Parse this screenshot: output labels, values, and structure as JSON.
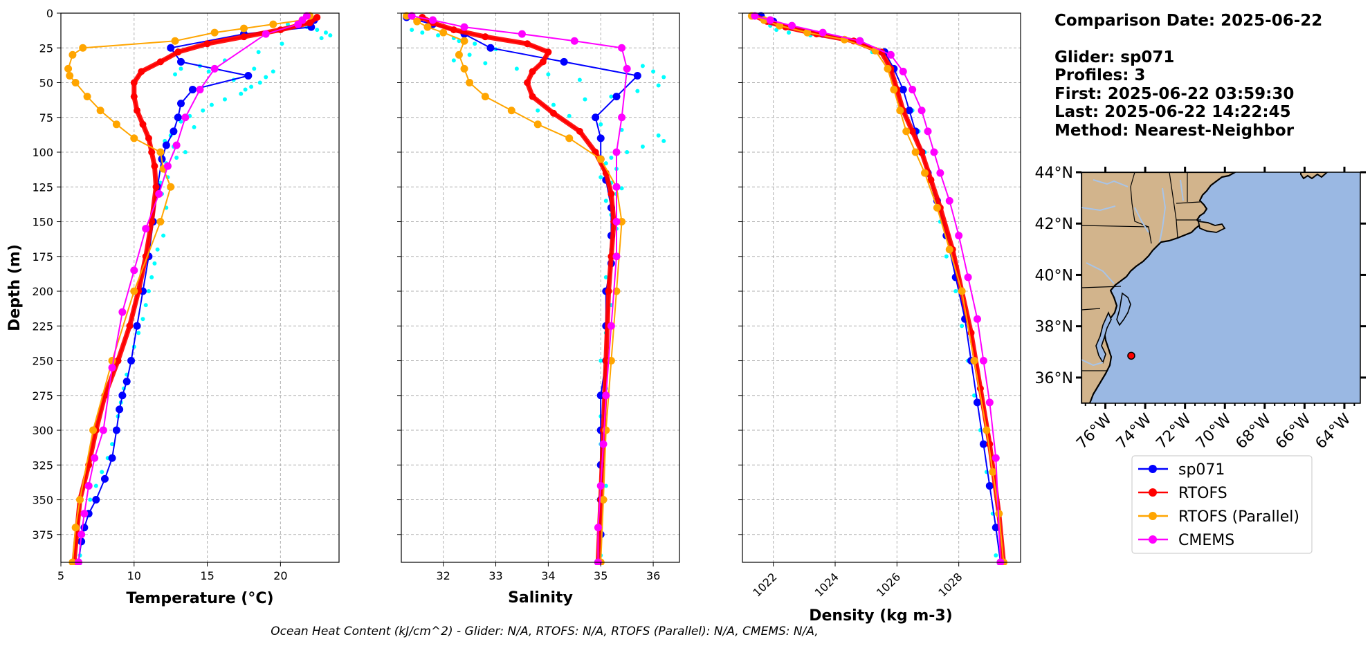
{
  "info": {
    "comparison_date": "Comparison Date: 2025-06-22",
    "glider": "Glider: sp071",
    "profiles": "Profiles: 3",
    "first": "First: 2025-06-22 03:59:30",
    "last": "Last: 2025-06-22 14:22:45",
    "method": "Method: Nearest-Neighbor"
  },
  "footer": "Ocean Heat Content (kJ/cm^2) - Glider: N/A,  RTOFS: N/A,  RTOFS (Parallel): N/A,  CMEMS: N/A,",
  "colors": {
    "glider_raw": "#00ffff",
    "sp071": "#0000ff",
    "RTOFS": "#ff0000",
    "RTOFS (Parallel)": "#ffa500",
    "CMEMS": "#ff00ff",
    "land": "#d2b48c",
    "ocean": "#9ab8e3",
    "rivers": "#a8c4e8"
  },
  "legend": {
    "placement": "below-map",
    "entries": [
      "sp071",
      "RTOFS",
      "RTOFS (Parallel)",
      "CMEMS"
    ]
  },
  "map": {
    "lon_range": [
      -77.2,
      -63.2
    ],
    "lat_range": [
      35.0,
      44.0
    ],
    "lon_ticks": [
      -76,
      -74,
      -72,
      -70,
      -68,
      -66,
      -64
    ],
    "lon_tick_labels": [
      "76°W",
      "74°W",
      "72°W",
      "70°W",
      "68°W",
      "66°W",
      "64°W"
    ],
    "lat_ticks": [
      36,
      38,
      40,
      42,
      44
    ],
    "lat_tick_labels": [
      "36°N",
      "38°N",
      "40°N",
      "42°N",
      "44°N"
    ],
    "glider_position": {
      "lon": -74.7,
      "lat": 36.85
    }
  },
  "chart_data": [
    {
      "type": "line",
      "title": "",
      "xlabel": "Temperature (°C)",
      "ylabel": "Depth (m)",
      "xlim": [
        5,
        24
      ],
      "ylim": [
        395,
        0
      ],
      "xticks": [
        5,
        10,
        15,
        20
      ],
      "xtick_labels": [
        "5",
        "10",
        "15",
        "20"
      ],
      "yticks": [
        0,
        25,
        50,
        75,
        100,
        125,
        150,
        175,
        200,
        225,
        250,
        275,
        300,
        325,
        350,
        375
      ],
      "ytick_labels": [
        "0",
        "25",
        "50",
        "75",
        "100",
        "125",
        "150",
        "175",
        "200",
        "225",
        "250",
        "275",
        "300",
        "325",
        "350",
        "375"
      ],
      "grid": true,
      "raw": {
        "x": [
          20.5,
          21.8,
          22.5,
          23.1,
          23.4,
          22.8,
          20.1,
          18.5,
          16.2,
          14.5,
          13.2,
          12.8,
          15.1,
          16.8,
          17.6,
          18.2,
          19.5,
          19.0,
          18.6,
          18.0,
          17.3,
          16.2,
          15.3,
          14.7,
          13.8,
          13.2,
          14.1,
          12.5,
          12.1,
          12.7,
          13.5,
          12.9,
          12.2,
          11.9,
          12.3,
          11.8,
          12.4,
          11.9,
          12.2,
          11.8,
          12.0,
          11.6,
          11.4,
          11.2,
          11.0,
          10.8,
          10.6,
          10.3,
          10.0,
          9.8,
          9.5,
          9.3,
          9.1,
          8.9,
          8.7,
          8.5,
          8.2,
          7.8,
          7.4,
          7.0,
          6.6,
          6.3
        ],
        "y": [
          8,
          10,
          12,
          14,
          16,
          18,
          22,
          28,
          34,
          38,
          40,
          44,
          42,
          48,
          55,
          40,
          42,
          46,
          50,
          53,
          58,
          62,
          66,
          70,
          74,
          78,
          82,
          88,
          92,
          96,
          100,
          104,
          108,
          112,
          118,
          122,
          126,
          130,
          140,
          150,
          160,
          170,
          180,
          190,
          200,
          210,
          220,
          230,
          240,
          250,
          260,
          270,
          280,
          290,
          300,
          310,
          320,
          330,
          340,
          350,
          370,
          390
        ],
        "note_series": "glider_raw"
      },
      "series": [
        {
          "name": "sp071",
          "x": [
            22.3,
            22.1,
            17.5,
            12.5,
            13.2,
            17.8,
            14.0,
            13.2,
            13.0,
            12.7,
            12.2,
            11.9,
            11.6,
            11.3,
            11.0,
            10.6,
            10.2,
            9.8,
            9.5,
            9.2,
            9.0,
            8.8,
            8.5,
            8.0,
            7.4,
            6.9,
            6.6,
            6.4,
            6.2
          ],
          "y": [
            5,
            10,
            15,
            25,
            35,
            45,
            55,
            65,
            75,
            85,
            95,
            105,
            125,
            150,
            175,
            200,
            225,
            250,
            265,
            275,
            285,
            300,
            320,
            335,
            350,
            360,
            370,
            380,
            395
          ]
        },
        {
          "name": "RTOFS",
          "x": [
            22.5,
            22.0,
            20.0,
            17.5,
            15.0,
            13.0,
            11.8,
            10.5,
            10.0,
            10.0,
            10.2,
            10.6,
            11.0,
            11.2,
            11.4,
            11.5,
            11.2,
            10.8,
            10.3,
            9.7,
            8.9,
            8.0,
            7.4,
            6.9,
            6.3,
            5.9
          ],
          "y": [
            3,
            7,
            12,
            17,
            22,
            28,
            35,
            42,
            50,
            60,
            70,
            80,
            90,
            100,
            110,
            125,
            150,
            175,
            200,
            225,
            250,
            275,
            300,
            325,
            350,
            395
          ]
        },
        {
          "name": "RTOFS (Parallel)",
          "x": [
            22.0,
            21.5,
            19.5,
            17.5,
            15.5,
            12.8,
            6.5,
            5.8,
            5.5,
            5.6,
            6.0,
            6.8,
            7.7,
            8.8,
            10.0,
            11.8,
            12.0,
            12.5,
            11.8,
            10.0,
            8.5,
            7.2,
            6.3,
            6.0,
            5.8
          ],
          "y": [
            2,
            5,
            8,
            11,
            14,
            20,
            25,
            30,
            40,
            45,
            50,
            60,
            70,
            80,
            90,
            100,
            112,
            125,
            150,
            200,
            250,
            300,
            350,
            370,
            395
          ]
        },
        {
          "name": "CMEMS",
          "x": [
            21.8,
            21.5,
            21.2,
            19.0,
            15.5,
            14.5,
            13.5,
            12.9,
            12.3,
            11.7,
            10.8,
            10.0,
            9.2,
            8.5,
            7.9,
            7.3,
            6.9,
            6.6,
            6.4,
            6.2
          ],
          "y": [
            2,
            5,
            8,
            15,
            40,
            55,
            75,
            95,
            110,
            130,
            155,
            185,
            215,
            255,
            300,
            320,
            340,
            360,
            375,
            395
          ]
        }
      ]
    },
    {
      "type": "line",
      "title": "",
      "xlabel": "Salinity",
      "ylabel": "",
      "xlim": [
        31.2,
        36.5
      ],
      "ylim": [
        395,
        0
      ],
      "xticks": [
        32,
        33,
        34,
        35,
        36
      ],
      "xtick_labels": [
        "32",
        "33",
        "34",
        "35",
        "36"
      ],
      "grid": true,
      "raw": {
        "x": [
          31.4,
          31.6,
          31.9,
          32.2,
          32.3,
          32.6,
          33.0,
          32.5,
          32.2,
          32.8,
          33.4,
          34.0,
          34.6,
          35.8,
          36.0,
          36.2,
          36.1,
          35.7,
          35.2,
          34.7,
          34.1,
          33.8,
          34.4,
          35.0,
          35.4,
          36.1,
          36.2,
          35.8,
          35.5,
          35.2,
          35.1,
          35.3,
          35.0,
          35.2,
          35.4,
          35.3,
          35.1,
          35.2,
          35.3,
          35.2,
          35.1,
          35.2,
          35.1,
          35.0,
          35.1,
          35.0,
          35.0,
          35.1,
          35.0,
          35.0
        ],
        "y": [
          12,
          14,
          16,
          18,
          20,
          22,
          26,
          30,
          34,
          36,
          40,
          44,
          48,
          38,
          42,
          46,
          52,
          56,
          60,
          62,
          66,
          70,
          74,
          80,
          84,
          88,
          92,
          96,
          100,
          104,
          108,
          112,
          118,
          122,
          126,
          130,
          135,
          145,
          155,
          170,
          190,
          210,
          230,
          250,
          270,
          290,
          310,
          340,
          370,
          390
        ],
        "note_series": "glider_raw"
      },
      "series": [
        {
          "name": "sp071",
          "x": [
            31.3,
            31.8,
            32.4,
            32.9,
            34.3,
            35.7,
            35.3,
            34.9,
            35.0,
            35.0,
            35.1,
            35.2,
            35.2,
            35.2,
            35.1,
            35.1,
            35.1,
            35.0,
            35.0,
            35.0,
            35.0,
            35.0,
            34.95
          ],
          "y": [
            3,
            8,
            15,
            25,
            35,
            45,
            60,
            75,
            90,
            105,
            120,
            140,
            160,
            180,
            200,
            225,
            250,
            275,
            300,
            325,
            350,
            375,
            395
          ]
        },
        {
          "name": "RTOFS",
          "x": [
            31.6,
            31.8,
            32.2,
            32.8,
            33.6,
            34.0,
            33.9,
            33.7,
            33.6,
            33.7,
            34.1,
            34.6,
            34.9,
            35.1,
            35.2,
            35.25,
            35.2,
            35.15,
            35.1,
            35.05,
            35.0,
            34.95
          ],
          "y": [
            3,
            7,
            12,
            17,
            22,
            28,
            35,
            42,
            50,
            60,
            72,
            85,
            100,
            115,
            130,
            150,
            175,
            200,
            250,
            300,
            350,
            395
          ]
        },
        {
          "name": "RTOFS (Parallel)",
          "x": [
            31.3,
            31.5,
            31.7,
            32.0,
            32.4,
            32.3,
            32.4,
            32.5,
            32.8,
            33.3,
            33.8,
            34.4,
            35.0,
            35.3,
            35.4,
            35.3,
            35.2,
            35.1,
            35.05,
            35.0
          ],
          "y": [
            2,
            6,
            10,
            14,
            20,
            30,
            40,
            50,
            60,
            70,
            80,
            90,
            105,
            125,
            150,
            200,
            250,
            300,
            350,
            395
          ]
        },
        {
          "name": "CMEMS",
          "x": [
            31.4,
            31.8,
            32.4,
            33.5,
            34.5,
            35.4,
            35.5,
            35.4,
            35.3,
            35.3,
            35.3,
            35.3,
            35.2,
            35.1,
            35.05,
            35.0,
            34.95,
            34.95
          ],
          "y": [
            2,
            5,
            10,
            15,
            20,
            25,
            40,
            75,
            100,
            125,
            150,
            175,
            225,
            275,
            310,
            340,
            370,
            395
          ]
        }
      ]
    },
    {
      "type": "line",
      "title": "",
      "xlabel": "Density (kg m-3)",
      "ylabel": "",
      "xlim": [
        1021.0,
        1030.0
      ],
      "ylim": [
        395,
        0
      ],
      "xticks": [
        1022,
        1024,
        1026,
        1028
      ],
      "xtick_labels": [
        "1022",
        "1024",
        "1026",
        "1028"
      ],
      "grid": true,
      "raw": {
        "x": [
          1021.8,
          1021.9,
          1022.1,
          1022.5,
          1023.2,
          1024.3,
          1025.2,
          1025.8,
          1026.2,
          1026.5,
          1026.7,
          1026.9,
          1027.0,
          1027.2,
          1027.4,
          1027.6,
          1027.9,
          1028.1,
          1028.3,
          1028.5,
          1028.7,
          1028.9,
          1029.1,
          1029.2
        ],
        "y": [
          6,
          9,
          12,
          14,
          16,
          20,
          28,
          40,
          55,
          70,
          85,
          100,
          115,
          130,
          150,
          175,
          200,
          225,
          250,
          275,
          300,
          330,
          360,
          390
        ],
        "note_series": "glider_raw"
      },
      "series": [
        {
          "name": "sp071",
          "x": [
            1021.6,
            1022.0,
            1022.6,
            1023.6,
            1024.8,
            1025.6,
            1025.9,
            1026.2,
            1026.4,
            1026.6,
            1026.8,
            1027.0,
            1027.3,
            1027.6,
            1027.9,
            1028.2,
            1028.4,
            1028.6,
            1028.8,
            1029.0,
            1029.2,
            1029.35
          ],
          "y": [
            2,
            6,
            10,
            15,
            20,
            28,
            40,
            55,
            70,
            85,
            100,
            115,
            135,
            160,
            190,
            220,
            250,
            280,
            310,
            340,
            370,
            395
          ]
        },
        {
          "name": "RTOFS",
          "x": [
            1021.4,
            1021.8,
            1022.4,
            1023.4,
            1024.6,
            1025.5,
            1025.8,
            1026.0,
            1026.2,
            1026.5,
            1026.8,
            1027.1,
            1027.4,
            1027.8,
            1028.1,
            1028.4,
            1028.7,
            1029.0,
            1029.3,
            1029.45
          ],
          "y": [
            2,
            6,
            10,
            15,
            20,
            28,
            40,
            55,
            70,
            85,
            100,
            120,
            140,
            170,
            200,
            230,
            270,
            310,
            360,
            395
          ]
        },
        {
          "name": "RTOFS (Parallel)",
          "x": [
            1021.3,
            1021.7,
            1022.2,
            1023.1,
            1024.3,
            1025.3,
            1025.7,
            1025.9,
            1026.1,
            1026.3,
            1026.6,
            1026.9,
            1027.3,
            1027.7,
            1028.1,
            1028.5,
            1028.9,
            1029.1,
            1029.3,
            1029.45
          ],
          "y": [
            2,
            5,
            9,
            14,
            19,
            27,
            40,
            55,
            70,
            85,
            100,
            115,
            140,
            170,
            200,
            250,
            300,
            330,
            360,
            395
          ]
        },
        {
          "name": "CMEMS",
          "x": [
            1021.4,
            1021.9,
            1022.6,
            1023.6,
            1024.8,
            1025.8,
            1026.2,
            1026.5,
            1026.8,
            1027.0,
            1027.2,
            1027.4,
            1027.7,
            1028.0,
            1028.3,
            1028.6,
            1028.8,
            1029.0,
            1029.2,
            1029.35
          ],
          "y": [
            2,
            5,
            9,
            14,
            20,
            30,
            42,
            55,
            70,
            85,
            100,
            115,
            135,
            160,
            190,
            220,
            250,
            280,
            320,
            395
          ]
        }
      ]
    }
  ]
}
